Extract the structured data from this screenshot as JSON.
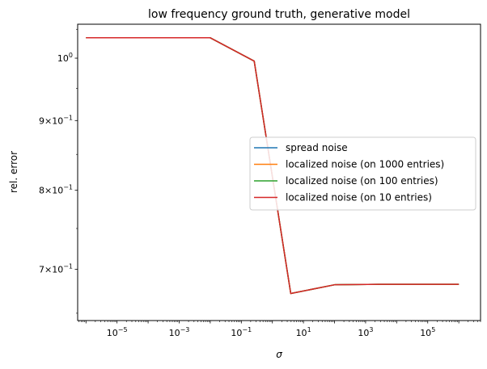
{
  "chart_data": {
    "type": "line",
    "title": "low frequency ground truth, generative model",
    "xlabel": "σ",
    "ylabel": "rel. error",
    "xscale": "log",
    "yscale": "log",
    "xlim": [
      5.4e-07,
      5000000.0
    ],
    "ylim": [
      0.642,
      1.059
    ],
    "x_ticks": [
      {
        "value": 1e-05,
        "base": "10",
        "exp": "−5"
      },
      {
        "value": 0.001,
        "base": "10",
        "exp": "−3"
      },
      {
        "value": 0.1,
        "base": "10",
        "exp": "−1"
      },
      {
        "value": 10.0,
        "base": "10",
        "exp": "1"
      },
      {
        "value": 1000.0,
        "base": "10",
        "exp": "3"
      },
      {
        "value": 100000.0,
        "base": "10",
        "exp": "5"
      }
    ],
    "y_ticks": [
      {
        "value": 0.7,
        "mant": "7",
        "base": "×10",
        "exp": "−1"
      },
      {
        "value": 0.8,
        "mant": "8",
        "base": "×10",
        "exp": "−1"
      },
      {
        "value": 0.9,
        "mant": "9",
        "base": "×10",
        "exp": "−1"
      },
      {
        "value": 1.0,
        "mant": "",
        "base": "10",
        "exp": "0"
      }
    ],
    "legend_position": "center-right",
    "series": [
      {
        "name": "spread noise",
        "color": "#1f77b4",
        "x": [
          1e-06,
          0.0001,
          0.01,
          0.26,
          3.9,
          100,
          2600,
          1000000.0
        ],
        "y": [
          1.035,
          1.035,
          1.035,
          0.995,
          0.672,
          0.682,
          0.6825,
          0.6825
        ]
      },
      {
        "name": "localized noise (on 1000 entries)",
        "color": "#ff7f0e",
        "x": [
          1e-06,
          0.0001,
          0.01,
          0.26,
          3.9,
          100,
          2600,
          1000000.0
        ],
        "y": [
          1.035,
          1.035,
          1.035,
          0.995,
          0.672,
          0.682,
          0.6825,
          0.6825
        ]
      },
      {
        "name": "localized noise (on 100 entries)",
        "color": "#2ca02c",
        "x": [
          1e-06,
          0.0001,
          0.01,
          0.26,
          3.9,
          100,
          2600,
          1000000.0
        ],
        "y": [
          1.035,
          1.035,
          1.035,
          0.995,
          0.672,
          0.682,
          0.6825,
          0.6825
        ]
      },
      {
        "name": "localized noise (on 10 entries)",
        "color": "#d62728",
        "x": [
          1e-06,
          0.0001,
          0.01,
          0.26,
          3.9,
          100,
          2600,
          1000000.0
        ],
        "y": [
          1.035,
          1.035,
          1.035,
          0.995,
          0.672,
          0.682,
          0.6825,
          0.6825
        ]
      }
    ]
  }
}
